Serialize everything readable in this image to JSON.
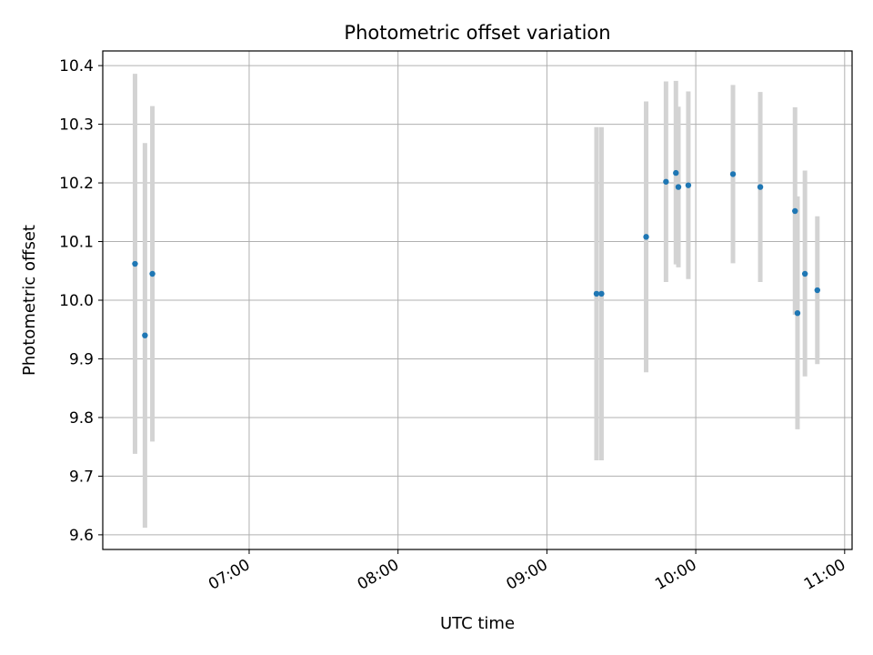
{
  "chart_data": {
    "type": "scatter",
    "title": "Photometric offset variation",
    "xlabel": "UTC time",
    "ylabel": "Photometric offset",
    "x_unit": "UTC time (HH:MM)",
    "xlim": [
      "06:01",
      "11:03"
    ],
    "ylim": [
      9.575,
      10.425
    ],
    "yticks": [
      9.6,
      9.7,
      9.8,
      9.9,
      10.0,
      10.1,
      10.2,
      10.3,
      10.4
    ],
    "ytick_labels": [
      "9.6",
      "9.7",
      "9.8",
      "9.9",
      "10.0",
      "10.1",
      "10.2",
      "10.3",
      "10.4"
    ],
    "xticks": [
      "07:00",
      "08:00",
      "09:00",
      "10:00",
      "11:00"
    ],
    "xtick_labels": [
      "07:00",
      "08:00",
      "09:00",
      "10:00",
      "11:00"
    ],
    "grid": true,
    "marker_color": "#1f77b4",
    "errorbar_color": "#d3d3d3",
    "points": [
      {
        "t": "06:14",
        "y": 10.062,
        "ylo": 9.738,
        "yhi": 10.386
      },
      {
        "t": "06:18",
        "y": 9.94,
        "ylo": 9.612,
        "yhi": 10.268
      },
      {
        "t": "06:21",
        "y": 10.045,
        "ylo": 9.759,
        "yhi": 10.331
      },
      {
        "t": "09:20",
        "y": 10.011,
        "ylo": 9.727,
        "yhi": 10.295
      },
      {
        "t": "09:22",
        "y": 10.011,
        "ylo": 9.727,
        "yhi": 10.295
      },
      {
        "t": "09:40",
        "y": 10.108,
        "ylo": 9.877,
        "yhi": 10.339
      },
      {
        "t": "09:48",
        "y": 10.202,
        "ylo": 10.031,
        "yhi": 10.373
      },
      {
        "t": "09:52",
        "y": 10.217,
        "ylo": 10.061,
        "yhi": 10.374
      },
      {
        "t": "09:53",
        "y": 10.193,
        "ylo": 10.056,
        "yhi": 10.33
      },
      {
        "t": "09:57",
        "y": 10.196,
        "ylo": 10.036,
        "yhi": 10.356
      },
      {
        "t": "10:15",
        "y": 10.215,
        "ylo": 10.063,
        "yhi": 10.367
      },
      {
        "t": "10:26",
        "y": 10.193,
        "ylo": 10.031,
        "yhi": 10.355
      },
      {
        "t": "10:40",
        "y": 10.152,
        "ylo": 9.975,
        "yhi": 10.329
      },
      {
        "t": "10:41",
        "y": 9.978,
        "ylo": 9.78,
        "yhi": 10.177
      },
      {
        "t": "10:44",
        "y": 10.045,
        "ylo": 9.87,
        "yhi": 10.221
      },
      {
        "t": "10:49",
        "y": 10.017,
        "ylo": 9.891,
        "yhi": 10.143
      }
    ]
  }
}
